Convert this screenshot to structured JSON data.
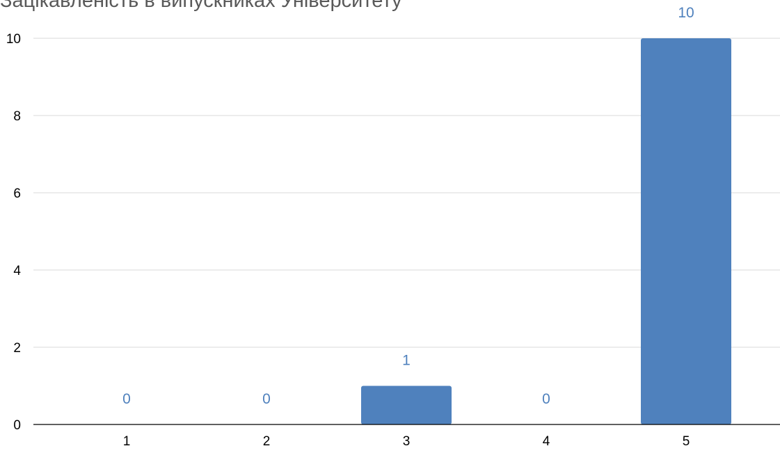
{
  "chart_data": {
    "type": "bar",
    "title": "Зацікавленість в випускниках Університету",
    "categories": [
      "1",
      "2",
      "3",
      "4",
      "5"
    ],
    "values": [
      0,
      0,
      1,
      0,
      10
    ],
    "ylim": [
      0,
      10
    ],
    "yticks": [
      0,
      2,
      4,
      6,
      8,
      10
    ],
    "xlabel": "",
    "ylabel": "",
    "grid": true,
    "legend": "none",
    "colors": {
      "bar": "#4f81bd",
      "data_label": "#4f81bd",
      "grid": "#d9d9d9",
      "axis": "#000000",
      "title": "#595959"
    }
  }
}
